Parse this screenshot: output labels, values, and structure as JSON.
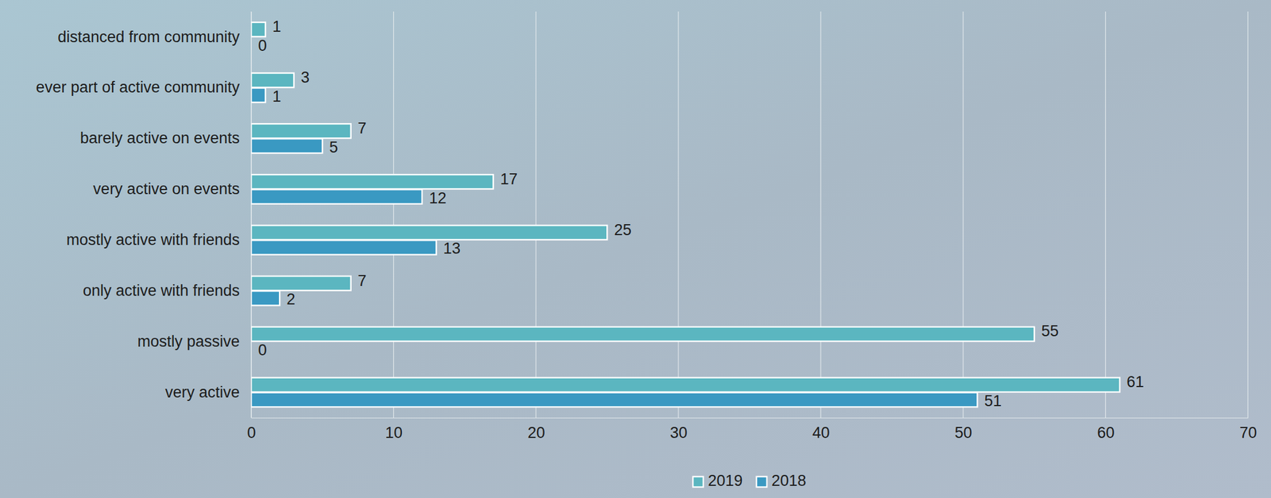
{
  "chart_data": {
    "type": "bar",
    "orientation": "horizontal",
    "categories": [
      "distanced from community",
      "ever part of active community",
      "barely active on events",
      "very active on events",
      "mostly active with friends",
      "only active with friends",
      "mostly passive",
      "very active"
    ],
    "series": [
      {
        "name": "2019",
        "color": "#5bb6c0",
        "values": [
          1,
          3,
          7,
          17,
          25,
          7,
          55,
          61
        ]
      },
      {
        "name": "2018",
        "color": "#3a99c2",
        "values": [
          0,
          1,
          5,
          12,
          13,
          2,
          0,
          51
        ]
      }
    ],
    "xlim": [
      0,
      70
    ],
    "xticks": [
      0,
      10,
      20,
      30,
      40,
      50,
      60,
      70
    ],
    "grid": true,
    "legend": "bottom",
    "data_labels": true
  }
}
